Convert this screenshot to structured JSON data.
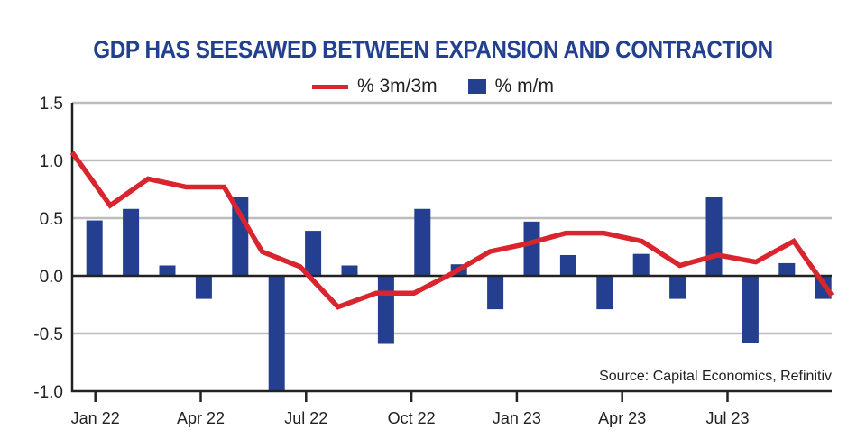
{
  "chart_data": {
    "type": "bar+line",
    "title": "GDP HAS SEESAWED BETWEEN EXPANSION AND CONTRACTION",
    "legend_position": "top",
    "categories": [
      "Jan 22",
      "Feb 22",
      "Mar 22",
      "Apr 22",
      "May 22",
      "Jun 22",
      "Jul 22",
      "Aug 22",
      "Sep 22",
      "Oct 22",
      "Nov 22",
      "Dec 22",
      "Jan 23",
      "Feb 23",
      "Mar 23",
      "Apr 23",
      "May 23",
      "Jun 23",
      "Jul 23",
      "Aug 23",
      "Sep 23"
    ],
    "x_tick_labels": [
      "Jan 22",
      "Apr 22",
      "Jul 22",
      "Oct 22",
      "Jan 23",
      "Apr 23",
      "Jul 23"
    ],
    "y_ticks": [
      "1.5",
      "1.0",
      "0.5",
      "0.0",
      "-0.5",
      "-1.0"
    ],
    "ylim": [
      -1.0,
      1.5
    ],
    "grid": true,
    "series": [
      {
        "name": "% 3m/3m",
        "type": "line",
        "color": "#d9252d",
        "values": [
          1.07,
          0.61,
          0.84,
          0.77,
          0.77,
          0.21,
          0.08,
          -0.27,
          -0.15,
          -0.15,
          0.02,
          0.21,
          0.28,
          0.37,
          0.37,
          0.3,
          0.09,
          0.18,
          0.12,
          0.3,
          -0.17
        ]
      },
      {
        "name": "% m/m",
        "type": "bar",
        "color": "#243f8f",
        "values": [
          0.48,
          0.58,
          0.09,
          -0.2,
          0.68,
          -1.0,
          0.39,
          0.09,
          -0.59,
          0.58,
          0.1,
          -0.29,
          0.47,
          0.18,
          -0.29,
          0.19,
          -0.2,
          0.68,
          -0.58,
          0.11,
          -0.2
        ]
      }
    ],
    "source": "Source: Capital Economics, Refinitiv"
  }
}
